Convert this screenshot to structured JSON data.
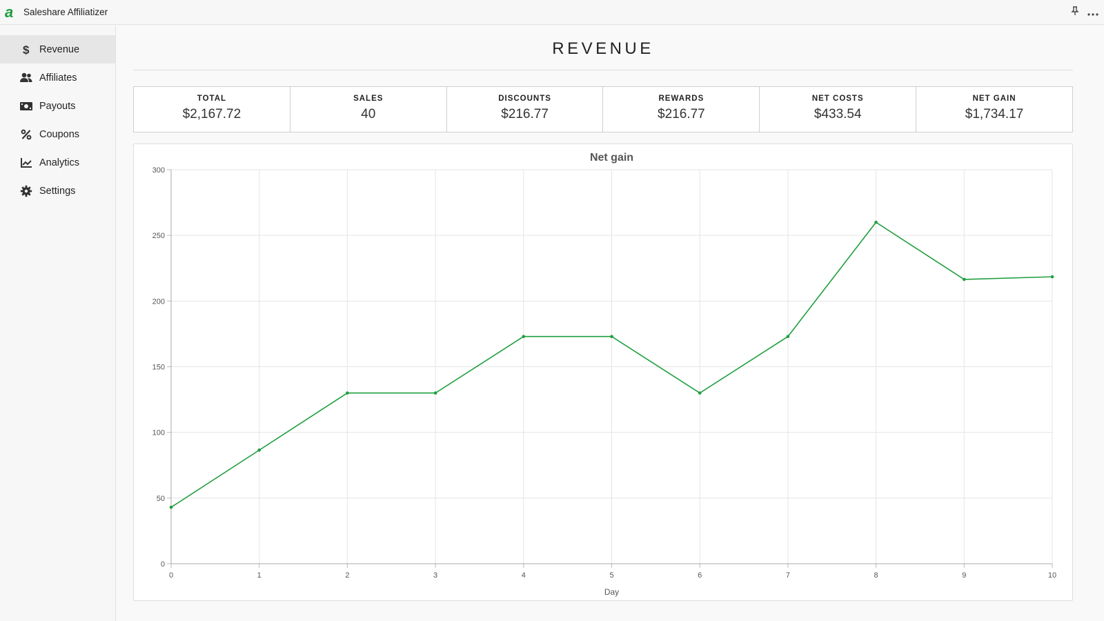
{
  "app": {
    "title": "Saleshare Affiliatizer",
    "logo_letter": "a",
    "brand_color": "#1e9e3e"
  },
  "topbar": {
    "pin_icon": "pin-icon",
    "more_icon": "more-icon"
  },
  "sidebar": {
    "items": [
      {
        "label": "Revenue",
        "icon": "dollar-icon",
        "active": true
      },
      {
        "label": "Affiliates",
        "icon": "users-icon",
        "active": false
      },
      {
        "label": "Payouts",
        "icon": "money-icon",
        "active": false
      },
      {
        "label": "Coupons",
        "icon": "percent-icon",
        "active": false
      },
      {
        "label": "Analytics",
        "icon": "chart-icon",
        "active": false
      },
      {
        "label": "Settings",
        "icon": "gear-icon",
        "active": false
      }
    ]
  },
  "main": {
    "title": "REVENUE",
    "stats": [
      {
        "label": "TOTAL",
        "value": "$2,167.72"
      },
      {
        "label": "SALES",
        "value": "40"
      },
      {
        "label": "DISCOUNTS",
        "value": "$216.77"
      },
      {
        "label": "REWARDS",
        "value": "$216.77"
      },
      {
        "label": "NET COSTS",
        "value": "$433.54"
      },
      {
        "label": "NET GAIN",
        "value": "$1,734.17"
      }
    ]
  },
  "chart_data": {
    "type": "line",
    "title": "Net gain",
    "xlabel": "Day",
    "ylabel": "",
    "x": [
      0,
      1,
      2,
      3,
      4,
      5,
      6,
      7,
      8,
      9,
      10
    ],
    "series": [
      {
        "values": [
          43,
          86.5,
          130,
          130,
          173,
          173,
          130,
          173,
          260,
          216.5,
          218.5
        ],
        "color": "#1e9e3e"
      }
    ],
    "xlim": [
      0,
      10
    ],
    "ylim": [
      0,
      300
    ],
    "yticks": [
      0,
      50,
      100,
      150,
      200,
      250,
      300
    ],
    "xticks": [
      0,
      1,
      2,
      3,
      4,
      5,
      6,
      7,
      8,
      9,
      10
    ],
    "grid": true,
    "legend": "none"
  }
}
